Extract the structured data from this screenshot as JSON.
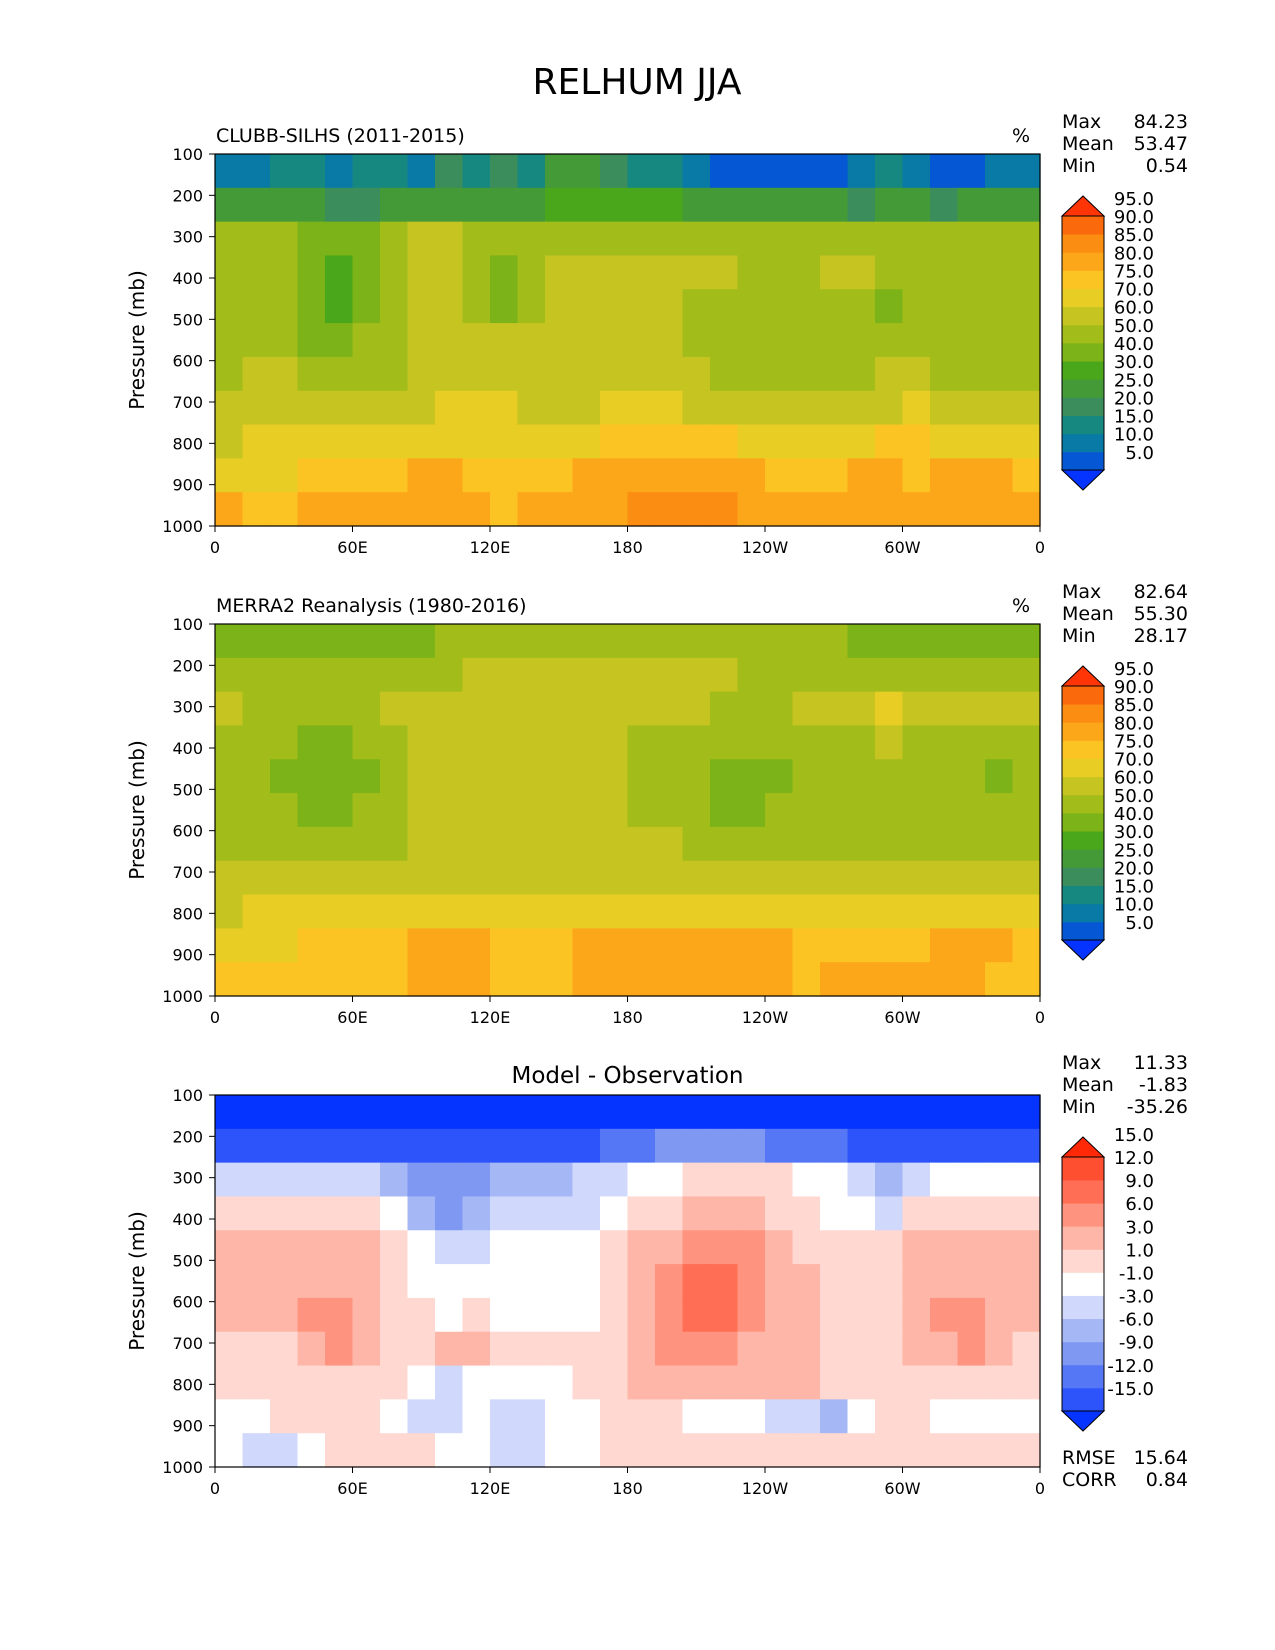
{
  "figure": {
    "title": "RELHUM JJA"
  },
  "chart_data": [
    {
      "type": "heatmap",
      "title": "CLUBB-SILHS (2011-2015)",
      "units": "%",
      "xlabel": "",
      "ylabel": "Pressure (mb)",
      "x_ticks": [
        "0",
        "60E",
        "120E",
        "180",
        "120W",
        "60W",
        "0"
      ],
      "y_ticks": [
        "100",
        "200",
        "300",
        "400",
        "500",
        "600",
        "700",
        "800",
        "900",
        "1000"
      ],
      "ylim": [
        1000,
        100
      ],
      "stats": [
        {
          "label": "Max",
          "value": "84.23"
        },
        {
          "label": "Mean",
          "value": "53.47"
        },
        {
          "label": "Min",
          "value": "0.54"
        }
      ],
      "levels": [
        "5.0",
        "10.0",
        "15.0",
        "20.0",
        "25.0",
        "30.0",
        "40.0",
        "50.0",
        "60.0",
        "70.0",
        "75.0",
        "80.0",
        "85.0",
        "90.0",
        "95.0"
      ],
      "colors": [
        "#0533ff",
        "#0557d4",
        "#087aa5",
        "#168880",
        "#3c8d5c",
        "#449a37",
        "#4aa61a",
        "#7bb318",
        "#a2bc1a",
        "#c5c421",
        "#e8cd25",
        "#fcc423",
        "#fca61a",
        "#fb8d12",
        "#fa6a0c",
        "#ff3508"
      ],
      "field": [
        [
          2,
          2,
          3,
          3,
          2,
          3,
          3,
          2,
          4,
          3,
          4,
          3,
          5,
          5,
          4,
          3,
          3,
          2,
          1,
          1,
          1,
          1,
          1,
          2,
          3,
          2,
          1,
          1,
          2,
          2
        ],
        [
          5,
          5,
          5,
          5,
          4,
          4,
          5,
          5,
          5,
          5,
          5,
          5,
          6,
          6,
          6,
          6,
          6,
          5,
          5,
          5,
          5,
          5,
          5,
          4,
          5,
          5,
          4,
          5,
          5,
          5
        ],
        [
          8,
          8,
          8,
          7,
          7,
          7,
          8,
          9,
          9,
          8,
          8,
          8,
          8,
          8,
          8,
          8,
          8,
          8,
          8,
          8,
          8,
          8,
          8,
          8,
          8,
          8,
          8,
          8,
          8,
          8
        ],
        [
          8,
          8,
          8,
          7,
          6,
          7,
          8,
          9,
          9,
          8,
          7,
          8,
          9,
          9,
          9,
          9,
          9,
          9,
          9,
          8,
          8,
          8,
          9,
          9,
          8,
          8,
          8,
          8,
          8,
          8
        ],
        [
          8,
          8,
          8,
          7,
          6,
          7,
          8,
          9,
          9,
          8,
          7,
          8,
          9,
          9,
          9,
          9,
          9,
          8,
          8,
          8,
          8,
          8,
          8,
          8,
          7,
          8,
          8,
          8,
          8,
          8
        ],
        [
          8,
          8,
          8,
          7,
          7,
          8,
          8,
          9,
          9,
          9,
          9,
          9,
          9,
          9,
          9,
          9,
          9,
          8,
          8,
          8,
          8,
          8,
          8,
          8,
          8,
          8,
          8,
          8,
          8,
          8
        ],
        [
          8,
          9,
          9,
          8,
          8,
          8,
          8,
          9,
          9,
          9,
          9,
          9,
          9,
          9,
          9,
          9,
          9,
          9,
          8,
          8,
          8,
          8,
          8,
          8,
          9,
          9,
          8,
          8,
          8,
          8
        ],
        [
          9,
          9,
          9,
          9,
          9,
          9,
          9,
          9,
          10,
          10,
          10,
          9,
          9,
          9,
          10,
          10,
          10,
          9,
          9,
          9,
          9,
          9,
          9,
          9,
          9,
          10,
          9,
          9,
          9,
          9
        ],
        [
          9,
          10,
          10,
          10,
          10,
          10,
          10,
          10,
          10,
          10,
          10,
          10,
          10,
          10,
          11,
          11,
          11,
          11,
          11,
          10,
          10,
          10,
          10,
          10,
          11,
          11,
          10,
          10,
          10,
          10
        ],
        [
          10,
          10,
          10,
          11,
          11,
          11,
          11,
          12,
          12,
          11,
          11,
          11,
          11,
          12,
          12,
          12,
          12,
          12,
          12,
          12,
          11,
          11,
          11,
          12,
          12,
          11,
          12,
          12,
          12,
          11
        ],
        [
          12,
          11,
          11,
          12,
          12,
          12,
          12,
          12,
          12,
          12,
          11,
          12,
          12,
          12,
          12,
          13,
          13,
          13,
          13,
          12,
          12,
          12,
          12,
          12,
          12,
          12,
          12,
          12,
          12,
          12
        ]
      ]
    },
    {
      "type": "heatmap",
      "title": "MERRA2 Reanalysis (1980-2016)",
      "units": "%",
      "xlabel": "",
      "ylabel": "Pressure (mb)",
      "x_ticks": [
        "0",
        "60E",
        "120E",
        "180",
        "120W",
        "60W",
        "0"
      ],
      "y_ticks": [
        "100",
        "200",
        "300",
        "400",
        "500",
        "600",
        "700",
        "800",
        "900",
        "1000"
      ],
      "ylim": [
        1000,
        100
      ],
      "stats": [
        {
          "label": "Max",
          "value": "82.64"
        },
        {
          "label": "Mean",
          "value": "55.30"
        },
        {
          "label": "Min",
          "value": "28.17"
        }
      ],
      "levels": [
        "5.0",
        "10.0",
        "15.0",
        "20.0",
        "25.0",
        "30.0",
        "40.0",
        "50.0",
        "60.0",
        "70.0",
        "75.0",
        "80.0",
        "85.0",
        "90.0",
        "95.0"
      ],
      "colors": [
        "#0533ff",
        "#0557d4",
        "#087aa5",
        "#168880",
        "#3c8d5c",
        "#449a37",
        "#4aa61a",
        "#7bb318",
        "#a2bc1a",
        "#c5c421",
        "#e8cd25",
        "#fcc423",
        "#fca61a",
        "#fb8d12",
        "#fa6a0c",
        "#ff3508"
      ],
      "field": [
        [
          7,
          7,
          7,
          7,
          7,
          7,
          7,
          7,
          8,
          8,
          8,
          8,
          8,
          8,
          8,
          8,
          8,
          8,
          8,
          8,
          8,
          8,
          8,
          7,
          7,
          7,
          7,
          7,
          7,
          7
        ],
        [
          8,
          8,
          8,
          8,
          8,
          8,
          8,
          8,
          8,
          9,
          9,
          9,
          9,
          9,
          9,
          9,
          9,
          9,
          9,
          8,
          8,
          8,
          8,
          8,
          8,
          8,
          8,
          8,
          8,
          8
        ],
        [
          9,
          8,
          8,
          8,
          8,
          8,
          9,
          9,
          9,
          9,
          9,
          9,
          9,
          9,
          9,
          9,
          9,
          9,
          8,
          8,
          8,
          9,
          9,
          9,
          10,
          9,
          9,
          9,
          9,
          9
        ],
        [
          8,
          8,
          8,
          7,
          7,
          8,
          8,
          9,
          9,
          9,
          9,
          9,
          9,
          9,
          9,
          8,
          8,
          8,
          8,
          8,
          8,
          8,
          8,
          8,
          9,
          8,
          8,
          8,
          8,
          8
        ],
        [
          8,
          8,
          7,
          7,
          7,
          7,
          8,
          9,
          9,
          9,
          9,
          9,
          9,
          9,
          9,
          8,
          8,
          8,
          7,
          7,
          7,
          8,
          8,
          8,
          8,
          8,
          8,
          8,
          7,
          8
        ],
        [
          8,
          8,
          8,
          7,
          7,
          8,
          8,
          9,
          9,
          9,
          9,
          9,
          9,
          9,
          9,
          8,
          8,
          8,
          7,
          7,
          8,
          8,
          8,
          8,
          8,
          8,
          8,
          8,
          8,
          8
        ],
        [
          8,
          8,
          8,
          8,
          8,
          8,
          8,
          9,
          9,
          9,
          9,
          9,
          9,
          9,
          9,
          9,
          9,
          8,
          8,
          8,
          8,
          8,
          8,
          8,
          8,
          8,
          8,
          8,
          8,
          8
        ],
        [
          9,
          9,
          9,
          9,
          9,
          9,
          9,
          9,
          9,
          9,
          9,
          9,
          9,
          9,
          9,
          9,
          9,
          9,
          9,
          9,
          9,
          9,
          9,
          9,
          9,
          9,
          9,
          9,
          9,
          9
        ],
        [
          9,
          10,
          10,
          10,
          10,
          10,
          10,
          10,
          10,
          10,
          10,
          10,
          10,
          10,
          10,
          10,
          10,
          10,
          10,
          10,
          10,
          10,
          10,
          10,
          10,
          10,
          10,
          10,
          10,
          10
        ],
        [
          10,
          10,
          10,
          11,
          11,
          11,
          11,
          12,
          12,
          12,
          11,
          11,
          11,
          12,
          12,
          12,
          12,
          12,
          12,
          12,
          12,
          11,
          11,
          11,
          11,
          11,
          12,
          12,
          12,
          11
        ],
        [
          11,
          11,
          11,
          11,
          11,
          11,
          11,
          12,
          12,
          12,
          11,
          11,
          11,
          12,
          12,
          12,
          12,
          12,
          12,
          12,
          12,
          11,
          12,
          12,
          12,
          12,
          12,
          12,
          11,
          11
        ]
      ]
    },
    {
      "type": "heatmap",
      "title": "Model - Observation",
      "units": "",
      "xlabel": "",
      "ylabel": "Pressure (mb)",
      "x_ticks": [
        "0",
        "60E",
        "120E",
        "180",
        "120W",
        "60W",
        "0"
      ],
      "y_ticks": [
        "100",
        "200",
        "300",
        "400",
        "500",
        "600",
        "700",
        "800",
        "900",
        "1000"
      ],
      "ylim": [
        1000,
        100
      ],
      "stats": [
        {
          "label": "Max",
          "value": "11.33"
        },
        {
          "label": "Mean",
          "value": "-1.83"
        },
        {
          "label": "Min",
          "value": "-35.26"
        }
      ],
      "extra_stats": [
        {
          "label": "RMSE",
          "value": "15.64"
        },
        {
          "label": "CORR",
          "value": "0.84"
        }
      ],
      "levels": [
        "-15.0",
        "-12.0",
        "-9.0",
        "-6.0",
        "-3.0",
        "-1.0",
        "1.0",
        "3.0",
        "6.0",
        "9.0",
        "12.0",
        "15.0"
      ],
      "colors": [
        "#0533ff",
        "#2d54fb",
        "#5577f6",
        "#7f99f2",
        "#a6b7f5",
        "#d0d8fb",
        "#ffffff",
        "#ffd8d1",
        "#feb6a8",
        "#fe947f",
        "#ff6e55",
        "#ff4f31",
        "#ff2907"
      ],
      "field": [
        [
          0,
          0,
          0,
          0,
          0,
          0,
          0,
          0,
          0,
          0,
          0,
          0,
          0,
          0,
          0,
          0,
          0,
          0,
          0,
          0,
          0,
          0,
          0,
          0,
          0,
          0,
          0,
          0,
          0,
          0
        ],
        [
          1,
          1,
          1,
          1,
          1,
          1,
          1,
          1,
          1,
          1,
          1,
          1,
          1,
          1,
          2,
          2,
          3,
          3,
          3,
          3,
          2,
          2,
          2,
          1,
          1,
          1,
          1,
          1,
          1,
          1
        ],
        [
          5,
          5,
          5,
          5,
          5,
          5,
          4,
          3,
          3,
          3,
          4,
          4,
          4,
          5,
          5,
          6,
          6,
          7,
          7,
          7,
          7,
          6,
          6,
          5,
          4,
          5,
          6,
          6,
          6,
          6
        ],
        [
          7,
          7,
          7,
          7,
          7,
          7,
          6,
          4,
          3,
          4,
          5,
          5,
          5,
          5,
          6,
          7,
          7,
          8,
          8,
          8,
          7,
          7,
          6,
          6,
          5,
          7,
          7,
          7,
          7,
          7
        ],
        [
          8,
          8,
          8,
          8,
          8,
          8,
          7,
          6,
          5,
          5,
          6,
          6,
          6,
          6,
          7,
          8,
          8,
          9,
          9,
          9,
          8,
          7,
          7,
          7,
          7,
          8,
          8,
          8,
          8,
          8
        ],
        [
          8,
          8,
          8,
          8,
          8,
          8,
          7,
          6,
          6,
          6,
          6,
          6,
          6,
          6,
          7,
          8,
          9,
          10,
          10,
          9,
          8,
          8,
          7,
          7,
          7,
          8,
          8,
          8,
          8,
          8
        ],
        [
          8,
          8,
          8,
          9,
          9,
          8,
          7,
          7,
          6,
          7,
          6,
          6,
          6,
          6,
          7,
          8,
          9,
          10,
          10,
          9,
          8,
          8,
          7,
          7,
          7,
          8,
          9,
          9,
          8,
          8
        ],
        [
          7,
          7,
          7,
          8,
          9,
          8,
          7,
          7,
          8,
          8,
          7,
          7,
          7,
          7,
          7,
          8,
          9,
          9,
          9,
          8,
          8,
          8,
          7,
          7,
          7,
          8,
          8,
          9,
          8,
          7
        ],
        [
          7,
          7,
          7,
          7,
          7,
          7,
          7,
          6,
          5,
          6,
          6,
          6,
          6,
          7,
          7,
          8,
          8,
          8,
          8,
          8,
          8,
          8,
          7,
          7,
          7,
          7,
          7,
          7,
          7,
          7
        ],
        [
          6,
          6,
          7,
          7,
          7,
          7,
          6,
          5,
          5,
          6,
          5,
          5,
          6,
          6,
          7,
          7,
          7,
          6,
          6,
          6,
          5,
          5,
          4,
          6,
          7,
          7,
          6,
          6,
          6,
          6
        ],
        [
          6,
          5,
          5,
          6,
          7,
          7,
          7,
          7,
          6,
          6,
          5,
          5,
          6,
          6,
          7,
          7,
          7,
          7,
          7,
          7,
          7,
          7,
          7,
          7,
          7,
          7,
          7,
          7,
          7,
          7
        ]
      ]
    }
  ]
}
